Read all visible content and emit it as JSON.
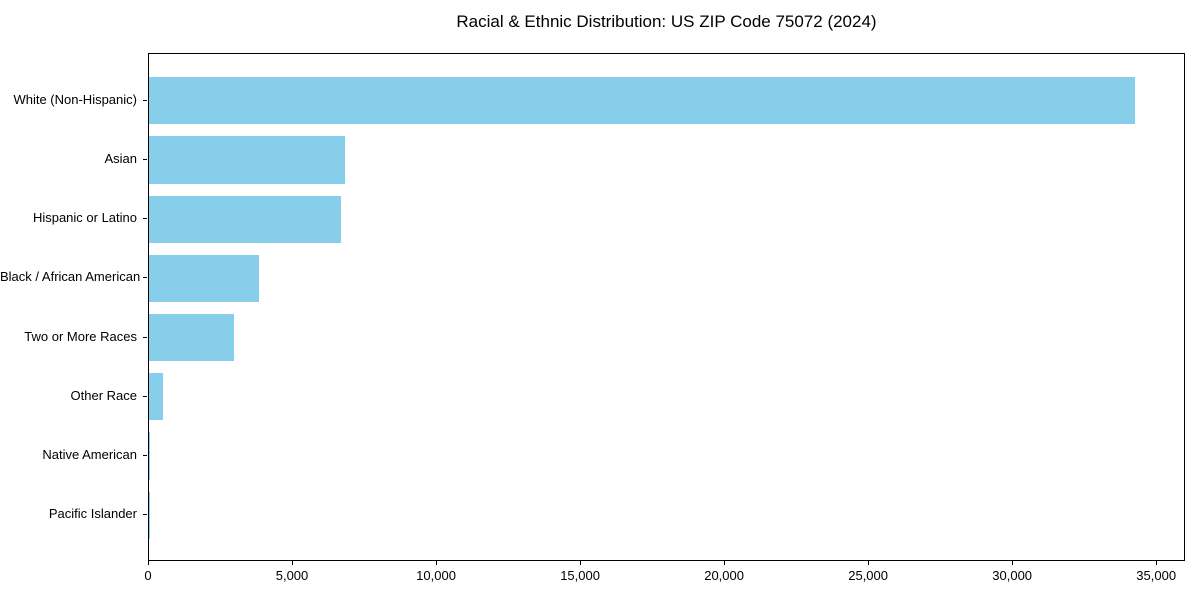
{
  "chart_data": {
    "type": "bar",
    "orientation": "horizontal",
    "title": "Racial & Ethnic Distribution: US ZIP Code 75072 (2024)",
    "categories": [
      "White (Non-Hispanic)",
      "Asian",
      "Hispanic or Latino",
      "Black / African American",
      "Two or More Races",
      "Other Race",
      "Native American",
      "Pacific Islander"
    ],
    "values": [
      34300,
      6830,
      6680,
      3830,
      2970,
      500,
      40,
      15
    ],
    "xlabel": "",
    "ylabel": "",
    "xlim": [
      0,
      36000
    ],
    "xticks": [
      0,
      5000,
      10000,
      15000,
      20000,
      25000,
      30000,
      35000
    ],
    "xtick_labels": [
      "0",
      "5,000",
      "10,000",
      "15,000",
      "20,000",
      "25,000",
      "30,000",
      "35,000"
    ],
    "bar_color": "#87CEEB",
    "background_color": "#ffffff",
    "grid": false,
    "legend_position": "none"
  }
}
